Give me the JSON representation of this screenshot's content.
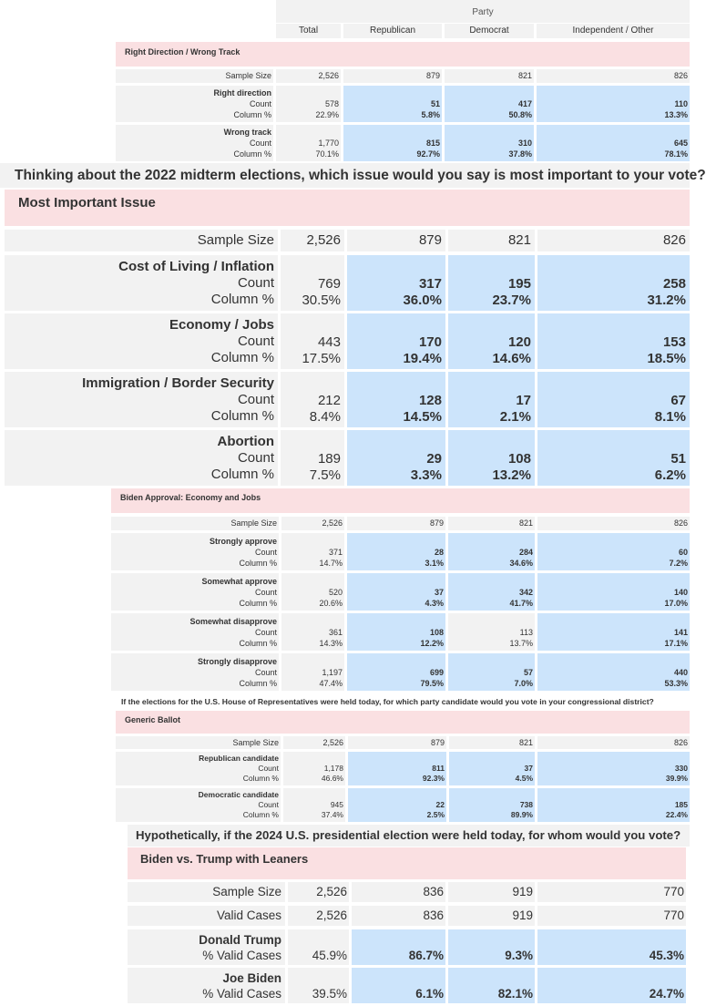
{
  "header": {
    "group_label": "Party",
    "columns": [
      "Total",
      "Republican",
      "Democrat",
      "Independent / Other"
    ]
  },
  "tables": [
    {
      "id": "t1",
      "question": "",
      "title": "Right Direction / Wrong Track",
      "sample_size_label": "Sample Size",
      "sample_size": [
        "2,526",
        "879",
        "821",
        "826"
      ],
      "rows": [
        {
          "label": "Right direction",
          "count_label": "Count",
          "pct_label": "Column %",
          "count": [
            "578",
            "51",
            "417",
            "110"
          ],
          "pct": [
            "22.9%",
            "5.8%",
            "50.8%",
            "13.3%"
          ]
        },
        {
          "label": "Wrong track",
          "count_label": "Count",
          "pct_label": "Column %",
          "count": [
            "1,770",
            "815",
            "310",
            "645"
          ],
          "pct": [
            "70.1%",
            "92.7%",
            "37.8%",
            "78.1%"
          ]
        }
      ]
    },
    {
      "id": "t2",
      "question": "Thinking about the 2022 midterm elections, which issue would you say is most important to your vote?",
      "title": "Most Important Issue",
      "sample_size_label": "Sample Size",
      "sample_size": [
        "2,526",
        "879",
        "821",
        "826"
      ],
      "rows": [
        {
          "label": "Cost of Living / Inflation",
          "count_label": "Count",
          "pct_label": "Column %",
          "count": [
            "769",
            "317",
            "195",
            "258"
          ],
          "pct": [
            "30.5%",
            "36.0%",
            "23.7%",
            "31.2%"
          ]
        },
        {
          "label": "Economy / Jobs",
          "count_label": "Count",
          "pct_label": "Column %",
          "count": [
            "443",
            "170",
            "120",
            "153"
          ],
          "pct": [
            "17.5%",
            "19.4%",
            "14.6%",
            "18.5%"
          ]
        },
        {
          "label": "Immigration / Border Security",
          "count_label": "Count",
          "pct_label": "Column %",
          "count": [
            "212",
            "128",
            "17",
            "67"
          ],
          "pct": [
            "8.4%",
            "14.5%",
            "2.1%",
            "8.1%"
          ]
        },
        {
          "label": "Abortion",
          "count_label": "Count",
          "pct_label": "Column %",
          "count": [
            "189",
            "29",
            "108",
            "51"
          ],
          "pct": [
            "7.5%",
            "3.3%",
            "13.2%",
            "6.2%"
          ]
        }
      ]
    },
    {
      "id": "t3",
      "question": "",
      "title": "Biden Approval: Economy and Jobs",
      "sample_size_label": "Sample Size",
      "sample_size": [
        "2,526",
        "879",
        "821",
        "826"
      ],
      "rows": [
        {
          "label": "Strongly approve",
          "count_label": "Count",
          "pct_label": "Column %",
          "count": [
            "371",
            "28",
            "284",
            "60"
          ],
          "pct": [
            "14.7%",
            "3.1%",
            "34.6%",
            "7.2%"
          ]
        },
        {
          "label": "Somewhat approve",
          "count_label": "Count",
          "pct_label": "Column %",
          "count": [
            "520",
            "37",
            "342",
            "140"
          ],
          "pct": [
            "20.6%",
            "4.3%",
            "41.7%",
            "17.0%"
          ]
        },
        {
          "label": "Somewhat disapprove",
          "count_label": "Count",
          "pct_label": "Column %",
          "count": [
            "361",
            "108",
            "113",
            "141"
          ],
          "pct": [
            "14.3%",
            "12.2%",
            "13.7%",
            "17.1%"
          ]
        },
        {
          "label": "Strongly disapprove",
          "count_label": "Count",
          "pct_label": "Column %",
          "count": [
            "1,197",
            "699",
            "57",
            "440"
          ],
          "pct": [
            "47.4%",
            "79.5%",
            "7.0%",
            "53.3%"
          ]
        }
      ]
    },
    {
      "id": "t4",
      "question": "If the elections for the U.S. House of Representatives were held today, for which party candidate would you vote in your congressional district?",
      "title": "Generic Ballot",
      "sample_size_label": "Sample Size",
      "sample_size": [
        "2,526",
        "879",
        "821",
        "826"
      ],
      "rows": [
        {
          "label": "Republican candidate",
          "count_label": "Count",
          "pct_label": "Column %",
          "count": [
            "1,178",
            "811",
            "37",
            "330"
          ],
          "pct": [
            "46.6%",
            "92.3%",
            "4.5%",
            "39.9%"
          ]
        },
        {
          "label": "Democratic candidate",
          "count_label": "Count",
          "pct_label": "Column %",
          "count": [
            "945",
            "22",
            "738",
            "185"
          ],
          "pct": [
            "37.4%",
            "2.5%",
            "89.9%",
            "22.4%"
          ]
        }
      ]
    },
    {
      "id": "t5",
      "question": "Hypothetically, if the 2024 U.S. presidential election were held today, for whom would you vote?",
      "title": "Biden vs. Trump with Leaners",
      "sample_size_label": "Sample Size",
      "sample_size": [
        "2,526",
        "836",
        "919",
        "770"
      ],
      "valid_cases_label": "Valid Cases",
      "valid_cases": [
        "2,526",
        "836",
        "919",
        "770"
      ],
      "rows": [
        {
          "label": "Donald Trump",
          "pct_label": "% Valid Cases",
          "pct": [
            "45.9%",
            "86.7%",
            "9.3%",
            "45.3%"
          ]
        },
        {
          "label": "Joe Biden",
          "pct_label": "% Valid Cases",
          "pct": [
            "39.5%",
            "6.1%",
            "82.1%",
            "24.7%"
          ]
        }
      ]
    }
  ]
}
